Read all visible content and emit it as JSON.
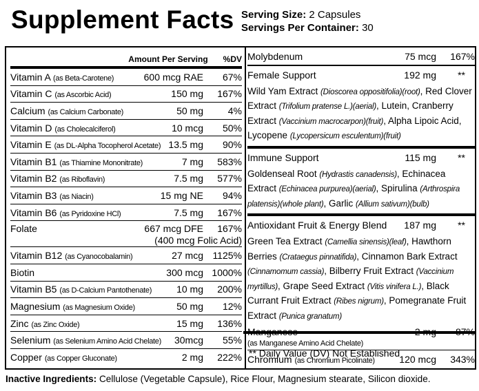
{
  "header": {
    "title": "Supplement Facts",
    "serving_size_label": "Serving Size:",
    "serving_size": "2 Capsules",
    "servings_label": "Servings Per Container:",
    "servings": "30"
  },
  "left": {
    "amount_heading": "Amount Per Serving",
    "dv_heading": "%DV",
    "rows": [
      {
        "name": "Vitamin A",
        "source": "(as Beta-Carotene)",
        "amount": "600 mcg RAE",
        "dv": "67%"
      },
      {
        "name": "Vitamin C",
        "source": "(as Ascorbic Acid)",
        "amount": "150 mg",
        "dv": "167%"
      },
      {
        "name": "Calcium",
        "source": "(as Calcium Carbonate)",
        "amount": "50 mg",
        "dv": "4%"
      },
      {
        "name": "Vitamin D",
        "source": "(as Cholecalciferol)",
        "amount": "10 mcg",
        "dv": "50%"
      },
      {
        "name": "Vitamin E",
        "source": "(as DL-Alpha Tocopherol Acetate)",
        "amount": "13.5 mg",
        "dv": "90%"
      },
      {
        "name": "Vitamin B1",
        "source": "(as Thiamine Mononitrate)",
        "amount": "7 mg",
        "dv": "583%"
      },
      {
        "name": "Vitamin B2",
        "source": "(as Riboflavin)",
        "amount": "7.5 mg",
        "dv": "577%"
      },
      {
        "name": "Vitamin B3",
        "source": "(as Niacin)",
        "amount": "15 mg NE",
        "dv": "94%"
      },
      {
        "name": "Vitamin B6",
        "source": "(as Pyridoxine HCl)",
        "amount": "7.5 mg",
        "dv": "167%"
      },
      {
        "name": "Folate",
        "amount": "667 mcg DFE",
        "dv": "167%",
        "note": "(400 mcg Folic Acid)"
      },
      {
        "name": "Vitamin B12",
        "source": "(as Cyanocobalamin)",
        "amount": "27 mcg",
        "dv": "1125%"
      },
      {
        "name": "Biotin",
        "amount": "300 mcg",
        "dv": "1000%"
      },
      {
        "name": "Vitamin B5",
        "source": "(as D-Calcium Pantothenate)",
        "amount": "10 mg",
        "dv": "200%"
      },
      {
        "name": "Magnesium",
        "source": "(as Magnesium Oxide)",
        "amount": "50 mg",
        "dv": "12%"
      },
      {
        "name": "Zinc",
        "source": "(as Zinc Oxide)",
        "amount": "15 mg",
        "dv": "136%"
      },
      {
        "name": "Selenium",
        "source": "(as Selenium Amino Acid Chelate)",
        "amount": "30mcg",
        "dv": "55%"
      },
      {
        "name": "Copper",
        "source": "(as Copper Gluconate)",
        "amount": "2 mg",
        "dv": "222%"
      }
    ]
  },
  "right": {
    "rows": [
      {
        "name": "Manganese",
        "amount": "2 mg",
        "dv": "87%",
        "note": "(as Manganese Amino Acid Chelate)"
      },
      {
        "name": "Chromium",
        "source": "(as Chromium Picolinate)",
        "amount": "120 mcg",
        "dv": "343%"
      },
      {
        "name": "Molybdenum",
        "amount": "75 mcg",
        "dv": "167%"
      }
    ],
    "blends": [
      {
        "name": "Female Support",
        "amount": "192 mg",
        "dv": "**",
        "segments": [
          {
            "text": "Wild Yam Extract ",
            "italic": false
          },
          {
            "text": "(Dioscorea oppositifolia)(root)",
            "italic": true
          },
          {
            "text": ", Red Clover Extract ",
            "italic": false
          },
          {
            "text": "(Trifolium pratense L.)(aerial)",
            "italic": true
          },
          {
            "text": ", Lutein, Cranberry Extract ",
            "italic": false
          },
          {
            "text": "(Vaccinium macrocarpon)(fruit)",
            "italic": true
          },
          {
            "text": ", Alpha Lipoic Acid, Lycopene ",
            "italic": false
          },
          {
            "text": "(Lycopersicum esculentum)(fruit)",
            "italic": true
          }
        ]
      },
      {
        "name": "Immune Support",
        "amount": "115 mg",
        "dv": "**",
        "segments": [
          {
            "text": "Goldenseal Root ",
            "italic": false
          },
          {
            "text": "(Hydrastis canadensis)",
            "italic": true
          },
          {
            "text": ", Echinacea Extract ",
            "italic": false
          },
          {
            "text": "(Echinacea purpurea)(aerial)",
            "italic": true
          },
          {
            "text": ", Spirulina ",
            "italic": false
          },
          {
            "text": "(Arthrospira platensis)(whole plant)",
            "italic": true
          },
          {
            "text": ", Garlic ",
            "italic": false
          },
          {
            "text": "(Allium sativum)(bulb)",
            "italic": true
          }
        ]
      },
      {
        "name": "Antioxidant Fruit & Energy Blend",
        "amount": "187 mg",
        "dv": "**",
        "segments": [
          {
            "text": "Green Tea Extract ",
            "italic": false
          },
          {
            "text": "(Camellia sinensis)(leaf)",
            "italic": true
          },
          {
            "text": ", Hawthorn Berries ",
            "italic": false
          },
          {
            "text": "(Crataegus pinnatifida)",
            "italic": true
          },
          {
            "text": ", Cinnamon Bark Extract ",
            "italic": false
          },
          {
            "text": "(Cinnamomum cassia)",
            "italic": true
          },
          {
            "text": ", Bilberry Fruit Extract ",
            "italic": false
          },
          {
            "text": "(Vaccinium myrtillus)",
            "italic": true
          },
          {
            "text": ", Grape Seed Extract ",
            "italic": false
          },
          {
            "text": "(Vitis vinifera L.)",
            "italic": true
          },
          {
            "text": ", Black Currant Fruit Extract ",
            "italic": false
          },
          {
            "text": "(Ribes nigrum)",
            "italic": true
          },
          {
            "text": ", Pomegranate Fruit Extract ",
            "italic": false
          },
          {
            "text": "(Punica granatum)",
            "italic": true
          }
        ]
      }
    ],
    "footnote": "** Daily Value (DV) Not Established"
  },
  "footer": {
    "label": "Inactive Ingredients:",
    "text": "Cellulose (Vegetable Capsule), Rice Flour, Magnesium stearate, Silicon dioxide."
  }
}
